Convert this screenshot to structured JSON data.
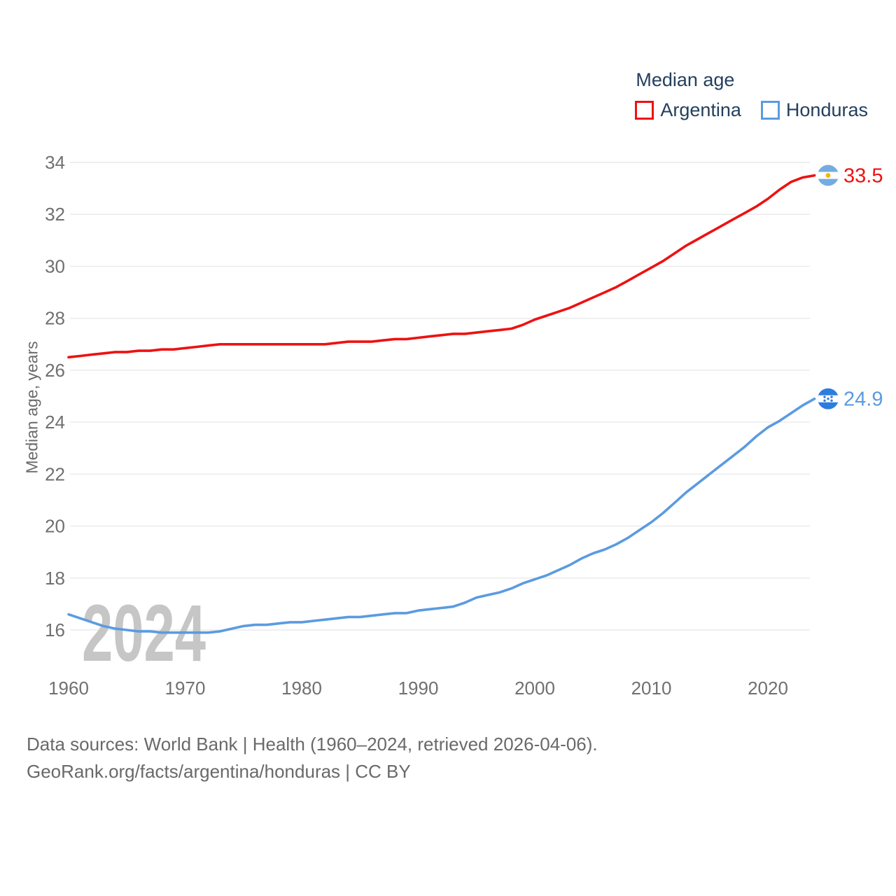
{
  "legend": {
    "title": "Median age",
    "items": [
      {
        "label": "Argentina",
        "color": "#ee1111"
      },
      {
        "label": "Honduras",
        "color": "#5b9be0"
      }
    ]
  },
  "watermark": "2024",
  "footer": {
    "line1": "Data sources: World Bank | Health (1960–2024, retrieved 2026-04-06).",
    "line2": "GeoRank.org/facts/argentina/honduras | CC BY"
  },
  "colors": {
    "argentina_line": "#ee1111",
    "honduras_line": "#5b9be0",
    "grid": "#eaeaea",
    "axis_text": "#707070",
    "legend_text": "#24405e",
    "watermark": "#c6c6c6",
    "footer_text": "#696969",
    "argentina_flag_stripe": "#74acdf",
    "argentina_flag_sun": "#f6b40e",
    "honduras_flag_blue": "#2e7dde",
    "flag_white": "#ffffff"
  },
  "chart_data": {
    "type": "line",
    "title": "Median age",
    "ylabel": "Median age, years",
    "x": {
      "start": 1960,
      "end": 2024,
      "step": 1
    },
    "x_ticks": [
      1960,
      1970,
      1980,
      1990,
      2000,
      2010,
      2020
    ],
    "y_ticks": [
      16,
      18,
      20,
      22,
      24,
      26,
      28,
      30,
      32,
      34
    ],
    "ylim": [
      15.2,
      34.6
    ],
    "grid": "horizontal",
    "legend_position": "top-right",
    "series": [
      {
        "name": "Argentina",
        "color": "#ee1111",
        "end_label": "33.5",
        "flag": "argentina",
        "values": [
          26.5,
          26.55,
          26.6,
          26.65,
          26.7,
          26.7,
          26.75,
          26.75,
          26.8,
          26.8,
          26.85,
          26.9,
          26.95,
          27.0,
          27.0,
          27.0,
          27.0,
          27.0,
          27.0,
          27.0,
          27.0,
          27.0,
          27.0,
          27.05,
          27.1,
          27.1,
          27.1,
          27.15,
          27.2,
          27.2,
          27.25,
          27.3,
          27.35,
          27.4,
          27.4,
          27.45,
          27.5,
          27.55,
          27.6,
          27.75,
          27.95,
          28.1,
          28.25,
          28.4,
          28.6,
          28.8,
          29.0,
          29.2,
          29.45,
          29.7,
          29.95,
          30.2,
          30.5,
          30.8,
          31.05,
          31.3,
          31.55,
          31.8,
          32.05,
          32.3,
          32.6,
          32.95,
          33.25,
          33.42,
          33.5
        ]
      },
      {
        "name": "Honduras",
        "color": "#5b9be0",
        "end_label": "24.9",
        "flag": "honduras",
        "values": [
          16.6,
          16.45,
          16.3,
          16.15,
          16.05,
          16.0,
          15.95,
          15.95,
          15.9,
          15.9,
          15.9,
          15.9,
          15.9,
          15.95,
          16.05,
          16.15,
          16.2,
          16.2,
          16.25,
          16.3,
          16.3,
          16.35,
          16.4,
          16.45,
          16.5,
          16.5,
          16.55,
          16.6,
          16.65,
          16.65,
          16.75,
          16.8,
          16.85,
          16.9,
          17.05,
          17.25,
          17.35,
          17.45,
          17.6,
          17.8,
          17.95,
          18.1,
          18.3,
          18.5,
          18.75,
          18.95,
          19.1,
          19.3,
          19.55,
          19.85,
          20.15,
          20.5,
          20.9,
          21.3,
          21.65,
          22.0,
          22.35,
          22.7,
          23.05,
          23.45,
          23.8,
          24.05,
          24.35,
          24.65,
          24.9
        ]
      }
    ]
  }
}
